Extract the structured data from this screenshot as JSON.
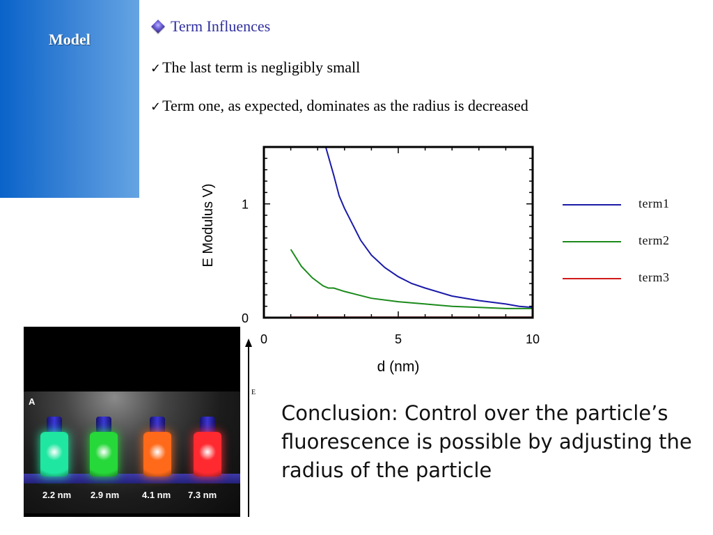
{
  "sidebar": {
    "title": "Model",
    "color": "#0a63c9"
  },
  "header": {
    "icon": "diamond-bullet-icon",
    "title": "Term Influences"
  },
  "bullets": [
    {
      "icon": "check-icon",
      "symbol": "✓",
      "text": "The last term is negligibly small"
    },
    {
      "icon": "check-icon",
      "symbol": "✓",
      "text": "Term one, as expected, dominates as the radius is decreased"
    }
  ],
  "chart_data": {
    "type": "line",
    "xlabel": "d (nm)",
    "ylabel": "E Modulus V)",
    "xlim": [
      0,
      10
    ],
    "ylim": [
      0,
      1.5
    ],
    "xticks": [
      0,
      5,
      10
    ],
    "yticks": [
      0,
      1
    ],
    "grid": false,
    "legend_position": "right",
    "series": [
      {
        "name": "term1",
        "color": "#1a1aa8",
        "x": [
          2.3,
          2.6,
          2.8,
          3.0,
          3.3,
          3.6,
          4.0,
          4.5,
          5.0,
          5.5,
          6.0,
          7.0,
          8.0,
          9.0,
          9.5,
          10.0
        ],
        "y": [
          1.5,
          1.25,
          1.07,
          0.96,
          0.82,
          0.68,
          0.55,
          0.44,
          0.36,
          0.3,
          0.26,
          0.19,
          0.15,
          0.12,
          0.1,
          0.09
        ]
      },
      {
        "name": "term2",
        "color": "#1a8a1a",
        "x": [
          1.0,
          1.4,
          1.8,
          2.2,
          2.4,
          2.6,
          3.0,
          3.5,
          4.0,
          5.0,
          6.0,
          7.0,
          8.0,
          9.0,
          10.0
        ],
        "y": [
          0.6,
          0.45,
          0.35,
          0.28,
          0.26,
          0.26,
          0.23,
          0.2,
          0.17,
          0.14,
          0.12,
          0.1,
          0.09,
          0.08,
          0.08
        ]
      },
      {
        "name": "term3",
        "color": "#d01818",
        "x": [
          1.0,
          10.0
        ],
        "y": [
          0.005,
          0.005
        ]
      }
    ]
  },
  "photo": {
    "panel_letter": "A",
    "vials": [
      {
        "label": "2.2 nm",
        "color": "#1fe6a0"
      },
      {
        "label": "2.9 nm",
        "color": "#27d83a"
      },
      {
        "label": "4.1 nm",
        "color": "#ff6a1a"
      },
      {
        "label": "7.3 nm",
        "color": "#ff2a30"
      }
    ]
  },
  "energy_axis": {
    "label": "E"
  },
  "conclusion": "Conclusion: Control over the particle’s fluorescence is possible by adjusting the radius of the particle"
}
